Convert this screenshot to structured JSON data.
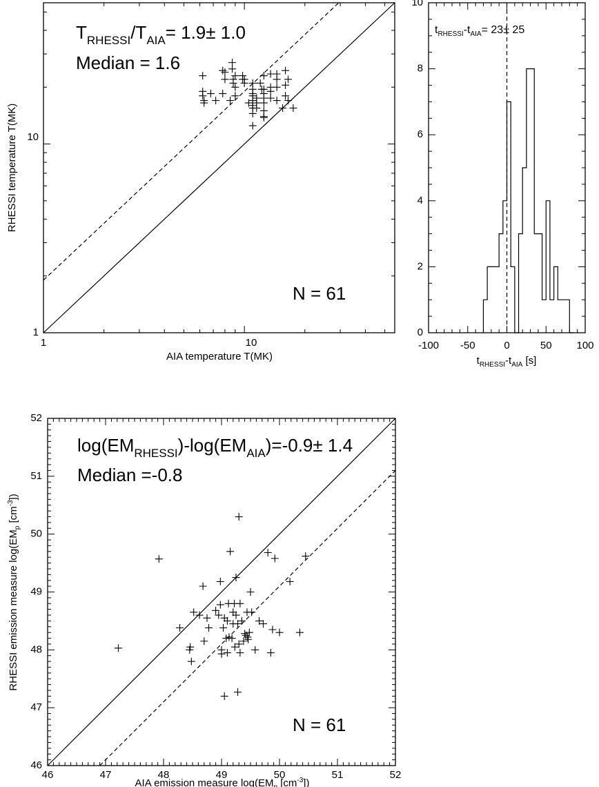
{
  "chart_data": [
    {
      "type": "scatter",
      "xlabel": "AIA temperature  T(MK)",
      "ylabel": "RHESSI temperature  T(MK)",
      "xscale": "log",
      "yscale": "log",
      "xlim": [
        1,
        56
      ],
      "ylim": [
        1,
        56
      ],
      "x_tick_labels": [
        "1",
        "10"
      ],
      "y_tick_labels": [
        "1",
        "10"
      ],
      "reference_lines": [
        {
          "style": "solid",
          "description": "equality line"
        },
        {
          "style": "dashed"
        }
      ],
      "annotation_ratio": {
        "base": "T",
        "sub1": "RHESSI",
        "slash": "/",
        "sub2": "AIA",
        "value": "= 1.9",
        "pm": "±",
        "err": " 1.0"
      },
      "annotation_median": "Median = 1.6",
      "annotation_n": "N =   61",
      "x": [
        6.2,
        6.2,
        6.2,
        6.3,
        6.3,
        6.8,
        7.2,
        7.8,
        7.8,
        8.0,
        8.0,
        8.5,
        8.7,
        8.7,
        8.8,
        8.8,
        9.0,
        9.0,
        9.0,
        9.8,
        9.8,
        10.0,
        10.0,
        10.5,
        11.0,
        11.0,
        11.0,
        11.0,
        11.0,
        11.0,
        11.0,
        11.0,
        11.0,
        11.5,
        11.5,
        11.5,
        12.0,
        12.2,
        12.5,
        12.5,
        12.5,
        12.5,
        12.5,
        12.5,
        12.5,
        12.5,
        13.5,
        13.5,
        13.5,
        13.5,
        14.5,
        14.5,
        14.5,
        14.5,
        15.5,
        16.0,
        16.0,
        16.0,
        16.5,
        16.5,
        17.5
      ],
      "y": [
        23,
        19,
        18,
        17,
        16.5,
        18.5,
        17,
        24.5,
        18.5,
        24,
        22,
        17,
        27,
        25,
        22,
        21,
        23,
        20,
        18,
        23,
        22,
        22,
        21,
        16.5,
        21,
        19.5,
        18.5,
        18,
        17,
        16,
        15.5,
        14.5,
        12.5,
        17.5,
        16.5,
        15.5,
        21,
        19.5,
        23,
        19.5,
        18.5,
        17.5,
        16.5,
        15,
        14,
        13.8,
        23.5,
        20,
        19,
        17.5,
        23.5,
        22,
        20,
        17,
        15.5,
        24.5,
        20.5,
        18,
        22,
        17,
        15.5
      ]
    },
    {
      "type": "histogram",
      "xlabel": {
        "base1": "t",
        "sub1": "RHESSI",
        "dash": "-",
        "base2": "t",
        "sub2": "AIA",
        "unit": "  [s]"
      },
      "annotation": {
        "base1": "t",
        "sub1": "RHESSI",
        "dash": "-",
        "base2": "t",
        "sub2": "AIA",
        "value": "= 23",
        "pm": "±",
        "err": " 25"
      },
      "xlim": [
        -100,
        100
      ],
      "ylim": [
        0,
        10
      ],
      "x_tick_labels": [
        "-100",
        "-50",
        "0",
        "50",
        "100"
      ],
      "y_tick_labels": [
        "0",
        "2",
        "4",
        "6",
        "8",
        "10"
      ],
      "bin_width": 5,
      "bin_starts": [
        -30,
        -25,
        -20,
        -15,
        -10,
        -5,
        0,
        5,
        10,
        15,
        20,
        25,
        30,
        35,
        40,
        45,
        50,
        55,
        60,
        65,
        70,
        75,
        80
      ],
      "counts": [
        1,
        2,
        2,
        2,
        3,
        4,
        7,
        2,
        0,
        3,
        5,
        8,
        8,
        3,
        3,
        1,
        4,
        1,
        2,
        1,
        1,
        1,
        0
      ],
      "reference_line": {
        "x": 0,
        "style": "dashed"
      }
    },
    {
      "type": "scatter",
      "xlabel": {
        "text": "AIA  emission measure  log(EM",
        "sub": "p",
        "mid": " [cm",
        "sup": "-3",
        "end": "])"
      },
      "ylabel": {
        "text": "RHESSI emission measure  log(EM",
        "sub": "p",
        "mid": " [cm",
        "sup": "-3",
        "end": "])"
      },
      "xlim": [
        46,
        52
      ],
      "ylim": [
        46,
        52
      ],
      "x_tick_labels": [
        "46",
        "47",
        "48",
        "49",
        "50",
        "51",
        "52"
      ],
      "y_tick_labels": [
        "46",
        "47",
        "48",
        "49",
        "50",
        "51",
        "52"
      ],
      "reference_lines": [
        {
          "style": "solid",
          "description": "equality line"
        },
        {
          "style": "dashed"
        }
      ],
      "annotation_diff": {
        "p1": "log(EM",
        "sub1": "RHESSI",
        "p2": ")-log(EM",
        "sub2": "AIA",
        "p3": ")=-0.9",
        "pm": "±",
        "err": " 1.4"
      },
      "annotation_median": "Median =-0.8",
      "annotation_n": "N =   61",
      "x": [
        47.22,
        47.92,
        48.28,
        48.45,
        48.46,
        48.48,
        48.52,
        48.62,
        48.68,
        48.7,
        48.75,
        48.78,
        48.9,
        48.95,
        48.98,
        48.98,
        49.0,
        49.0,
        49.03,
        49.05,
        49.05,
        49.08,
        49.1,
        49.1,
        49.12,
        49.13,
        49.15,
        49.18,
        49.2,
        49.2,
        49.22,
        49.23,
        49.25,
        49.25,
        49.28,
        49.28,
        49.3,
        49.3,
        49.32,
        49.32,
        49.35,
        49.38,
        49.4,
        49.42,
        49.44,
        49.45,
        49.46,
        49.48,
        49.5,
        49.52,
        49.58,
        49.65,
        49.72,
        49.8,
        49.85,
        49.88,
        49.92,
        50.0,
        50.18,
        50.35,
        50.45
      ],
      "y": [
        48.03,
        49.57,
        48.38,
        48.0,
        48.05,
        47.8,
        48.65,
        48.6,
        49.1,
        48.15,
        48.55,
        48.38,
        48.68,
        48.6,
        49.18,
        48.78,
        48.0,
        47.93,
        48.38,
        48.55,
        47.2,
        48.2,
        48.5,
        47.95,
        48.8,
        48.22,
        49.7,
        48.2,
        48.65,
        48.45,
        48.8,
        48.05,
        49.25,
        48.6,
        47.27,
        48.45,
        50.3,
        48.1,
        48.8,
        47.95,
        48.5,
        48.15,
        48.28,
        48.25,
        48.65,
        48.22,
        48.18,
        48.3,
        49.0,
        48.65,
        48.0,
        48.5,
        48.45,
        49.68,
        47.95,
        48.35,
        49.58,
        48.3,
        49.18,
        48.3,
        49.62
      ]
    }
  ]
}
